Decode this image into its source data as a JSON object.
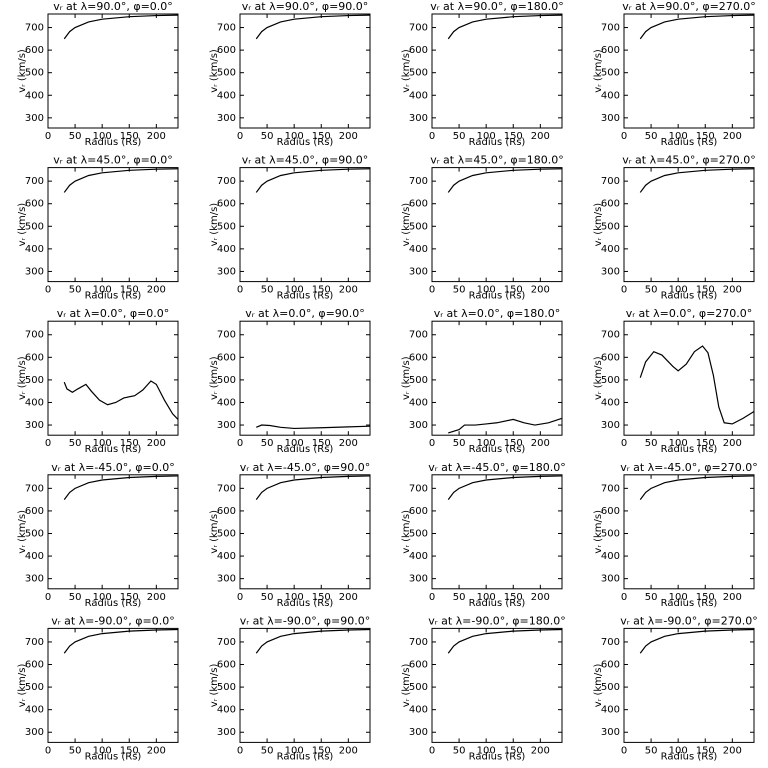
{
  "chart_data": [
    {
      "type": "line",
      "title": "vᵣ at λ=90.0°, φ=0.0°",
      "x_label": "Radius (Rs)",
      "y_label": "vᵣ (km/s)",
      "x": [
        30,
        40,
        50,
        75,
        100,
        150,
        200,
        240
      ],
      "y": [
        650,
        682,
        700,
        725,
        737,
        748,
        753,
        755
      ],
      "color": "#000000",
      "xlim": [
        0,
        240
      ],
      "ylim": [
        255,
        760
      ],
      "xticks": [
        0,
        50,
        100,
        150,
        200
      ],
      "yticks": [
        300,
        400,
        500,
        600,
        700
      ]
    },
    {
      "type": "line",
      "title": "vᵣ at λ=90.0°, φ=90.0°",
      "x_label": "Radius (Rs)",
      "y_label": "vᵣ (km/s)",
      "x": [
        30,
        40,
        50,
        75,
        100,
        150,
        200,
        240
      ],
      "y": [
        650,
        682,
        700,
        725,
        737,
        748,
        753,
        755
      ],
      "color": "#000000",
      "xlim": [
        0,
        240
      ],
      "ylim": [
        255,
        760
      ],
      "xticks": [
        0,
        50,
        100,
        150,
        200
      ],
      "yticks": [
        300,
        400,
        500,
        600,
        700
      ]
    },
    {
      "type": "line",
      "title": "vᵣ at λ=90.0°, φ=180.0°",
      "x_label": "Radius (Rs)",
      "y_label": "vᵣ (km/s)",
      "x": [
        30,
        40,
        50,
        75,
        100,
        150,
        200,
        240
      ],
      "y": [
        650,
        682,
        700,
        725,
        737,
        748,
        753,
        755
      ],
      "color": "#000000",
      "xlim": [
        0,
        240
      ],
      "ylim": [
        255,
        760
      ],
      "xticks": [
        0,
        50,
        100,
        150,
        200
      ],
      "yticks": [
        300,
        400,
        500,
        600,
        700
      ]
    },
    {
      "type": "line",
      "title": "vᵣ at λ=90.0°, φ=270.0°",
      "x_label": "Radius (Rs)",
      "y_label": "vᵣ (km/s)",
      "x": [
        30,
        40,
        50,
        75,
        100,
        150,
        200,
        240
      ],
      "y": [
        650,
        682,
        700,
        725,
        737,
        748,
        753,
        755
      ],
      "color": "#000000",
      "xlim": [
        0,
        240
      ],
      "ylim": [
        255,
        760
      ],
      "xticks": [
        0,
        50,
        100,
        150,
        200
      ],
      "yticks": [
        300,
        400,
        500,
        600,
        700
      ]
    },
    {
      "type": "line",
      "title": "vᵣ at λ=45.0°, φ=0.0°",
      "x_label": "Radius (Rs)",
      "y_label": "vᵣ (km/s)",
      "x": [
        30,
        40,
        50,
        75,
        100,
        150,
        200,
        240
      ],
      "y": [
        650,
        682,
        700,
        725,
        737,
        748,
        753,
        755
      ],
      "color": "#000000",
      "xlim": [
        0,
        240
      ],
      "ylim": [
        255,
        760
      ],
      "xticks": [
        0,
        50,
        100,
        150,
        200
      ],
      "yticks": [
        300,
        400,
        500,
        600,
        700
      ]
    },
    {
      "type": "line",
      "title": "vᵣ at λ=45.0°, φ=90.0°",
      "x_label": "Radius (Rs)",
      "y_label": "vᵣ (km/s)",
      "x": [
        30,
        40,
        50,
        75,
        100,
        150,
        200,
        240
      ],
      "y": [
        650,
        682,
        700,
        725,
        737,
        748,
        753,
        755
      ],
      "color": "#000000",
      "xlim": [
        0,
        240
      ],
      "ylim": [
        255,
        760
      ],
      "xticks": [
        0,
        50,
        100,
        150,
        200
      ],
      "yticks": [
        300,
        400,
        500,
        600,
        700
      ]
    },
    {
      "type": "line",
      "title": "vᵣ at λ=45.0°, φ=180.0°",
      "x_label": "Radius (Rs)",
      "y_label": "vᵣ (km/s)",
      "x": [
        30,
        40,
        50,
        75,
        100,
        150,
        200,
        240
      ],
      "y": [
        650,
        682,
        700,
        725,
        737,
        748,
        753,
        755
      ],
      "color": "#000000",
      "xlim": [
        0,
        240
      ],
      "ylim": [
        255,
        760
      ],
      "xticks": [
        0,
        50,
        100,
        150,
        200
      ],
      "yticks": [
        300,
        400,
        500,
        600,
        700
      ]
    },
    {
      "type": "line",
      "title": "vᵣ at λ=45.0°, φ=270.0°",
      "x_label": "Radius (Rs)",
      "y_label": "vᵣ (km/s)",
      "x": [
        30,
        40,
        50,
        75,
        100,
        150,
        200,
        240
      ],
      "y": [
        650,
        682,
        700,
        725,
        737,
        748,
        753,
        755
      ],
      "color": "#000000",
      "xlim": [
        0,
        240
      ],
      "ylim": [
        255,
        760
      ],
      "xticks": [
        0,
        50,
        100,
        150,
        200
      ],
      "yticks": [
        300,
        400,
        500,
        600,
        700
      ]
    },
    {
      "type": "line",
      "title": "vᵣ at λ=0.0°, φ=0.0°",
      "x_label": "Radius (Rs)",
      "y_label": "vᵣ (km/s)",
      "x": [
        30,
        35,
        45,
        55,
        70,
        80,
        95,
        110,
        125,
        140,
        160,
        175,
        190,
        200,
        215,
        230,
        240
      ],
      "y": [
        490,
        460,
        445,
        460,
        480,
        450,
        410,
        390,
        400,
        420,
        430,
        455,
        495,
        480,
        410,
        350,
        325
      ],
      "color": "#000000",
      "xlim": [
        0,
        240
      ],
      "ylim": [
        255,
        760
      ],
      "xticks": [
        0,
        50,
        100,
        150,
        200
      ],
      "yticks": [
        300,
        400,
        500,
        600,
        700
      ]
    },
    {
      "type": "line",
      "title": "vᵣ at λ=0.0°, φ=90.0°",
      "x_label": "Radius (Rs)",
      "y_label": "vᵣ (km/s)",
      "x": [
        30,
        40,
        55,
        75,
        100,
        150,
        200,
        240
      ],
      "y": [
        290,
        300,
        298,
        290,
        285,
        288,
        292,
        295
      ],
      "color": "#000000",
      "xlim": [
        0,
        240
      ],
      "ylim": [
        255,
        760
      ],
      "xticks": [
        0,
        50,
        100,
        150,
        200
      ],
      "yticks": [
        300,
        400,
        500,
        600,
        700
      ]
    },
    {
      "type": "line",
      "title": "vᵣ at λ=0.0°, φ=180.0°",
      "x_label": "Radius (Rs)",
      "y_label": "vᵣ (km/s)",
      "x": [
        30,
        50,
        60,
        80,
        100,
        120,
        150,
        170,
        190,
        215,
        240
      ],
      "y": [
        265,
        280,
        300,
        300,
        305,
        310,
        325,
        310,
        300,
        310,
        330
      ],
      "color": "#000000",
      "xlim": [
        0,
        240
      ],
      "ylim": [
        255,
        760
      ],
      "xticks": [
        0,
        50,
        100,
        150,
        200
      ],
      "yticks": [
        300,
        400,
        500,
        600,
        700
      ]
    },
    {
      "type": "line",
      "title": "vᵣ at λ=0.0°, φ=270.0°",
      "x_label": "Radius (Rs)",
      "y_label": "vᵣ (km/s)",
      "x": [
        30,
        40,
        55,
        70,
        90,
        100,
        115,
        130,
        145,
        155,
        165,
        175,
        185,
        200,
        220,
        240
      ],
      "y": [
        510,
        580,
        625,
        610,
        560,
        540,
        570,
        625,
        650,
        620,
        520,
        380,
        310,
        305,
        330,
        360
      ],
      "color": "#000000",
      "xlim": [
        0,
        240
      ],
      "ylim": [
        255,
        760
      ],
      "xticks": [
        0,
        50,
        100,
        150,
        200
      ],
      "yticks": [
        300,
        400,
        500,
        600,
        700
      ]
    },
    {
      "type": "line",
      "title": "vᵣ at λ=-45.0°, φ=0.0°",
      "x_label": "Radius (Rs)",
      "y_label": "vᵣ (km/s)",
      "x": [
        30,
        40,
        50,
        75,
        100,
        150,
        200,
        240
      ],
      "y": [
        650,
        682,
        700,
        725,
        737,
        748,
        753,
        755
      ],
      "color": "#000000",
      "xlim": [
        0,
        240
      ],
      "ylim": [
        255,
        760
      ],
      "xticks": [
        0,
        50,
        100,
        150,
        200
      ],
      "yticks": [
        300,
        400,
        500,
        600,
        700
      ]
    },
    {
      "type": "line",
      "title": "vᵣ at λ=-45.0°, φ=90.0°",
      "x_label": "Radius (Rs)",
      "y_label": "vᵣ (km/s)",
      "x": [
        30,
        40,
        50,
        75,
        100,
        150,
        200,
        240
      ],
      "y": [
        650,
        682,
        700,
        725,
        737,
        748,
        753,
        755
      ],
      "color": "#000000",
      "xlim": [
        0,
        240
      ],
      "ylim": [
        255,
        760
      ],
      "xticks": [
        0,
        50,
        100,
        150,
        200
      ],
      "yticks": [
        300,
        400,
        500,
        600,
        700
      ]
    },
    {
      "type": "line",
      "title": "vᵣ at λ=-45.0°, φ=180.0°",
      "x_label": "Radius (Rs)",
      "y_label": "vᵣ (km/s)",
      "x": [
        30,
        40,
        50,
        75,
        100,
        150,
        200,
        240
      ],
      "y": [
        650,
        682,
        700,
        725,
        737,
        748,
        753,
        755
      ],
      "color": "#000000",
      "xlim": [
        0,
        240
      ],
      "ylim": [
        255,
        760
      ],
      "xticks": [
        0,
        50,
        100,
        150,
        200
      ],
      "yticks": [
        300,
        400,
        500,
        600,
        700
      ]
    },
    {
      "type": "line",
      "title": "vᵣ at λ=-45.0°, φ=270.0°",
      "x_label": "Radius (Rs)",
      "y_label": "vᵣ (km/s)",
      "x": [
        30,
        40,
        50,
        75,
        100,
        150,
        200,
        240
      ],
      "y": [
        650,
        682,
        700,
        725,
        737,
        748,
        753,
        755
      ],
      "color": "#000000",
      "xlim": [
        0,
        240
      ],
      "ylim": [
        255,
        760
      ],
      "xticks": [
        0,
        50,
        100,
        150,
        200
      ],
      "yticks": [
        300,
        400,
        500,
        600,
        700
      ]
    },
    {
      "type": "line",
      "title": "vᵣ at λ=-90.0°, φ=0.0°",
      "x_label": "Radius (Rs)",
      "y_label": "vᵣ (km/s)",
      "x": [
        30,
        40,
        50,
        75,
        100,
        150,
        200,
        240
      ],
      "y": [
        650,
        682,
        700,
        725,
        737,
        748,
        753,
        755
      ],
      "color": "#000000",
      "xlim": [
        0,
        240
      ],
      "ylim": [
        255,
        760
      ],
      "xticks": [
        0,
        50,
        100,
        150,
        200
      ],
      "yticks": [
        300,
        400,
        500,
        600,
        700
      ]
    },
    {
      "type": "line",
      "title": "vᵣ at λ=-90.0°, φ=90.0°",
      "x_label": "Radius (Rs)",
      "y_label": "vᵣ (km/s)",
      "x": [
        30,
        40,
        50,
        75,
        100,
        150,
        200,
        240
      ],
      "y": [
        650,
        682,
        700,
        725,
        737,
        748,
        753,
        755
      ],
      "color": "#000000",
      "xlim": [
        0,
        240
      ],
      "ylim": [
        255,
        760
      ],
      "xticks": [
        0,
        50,
        100,
        150,
        200
      ],
      "yticks": [
        300,
        400,
        500,
        600,
        700
      ]
    },
    {
      "type": "line",
      "title": "vᵣ at λ=-90.0°, φ=180.0°",
      "x_label": "Radius (Rs)",
      "y_label": "vᵣ (km/s)",
      "x": [
        30,
        40,
        50,
        75,
        100,
        150,
        200,
        240
      ],
      "y": [
        650,
        682,
        700,
        725,
        737,
        748,
        753,
        755
      ],
      "color": "#000000",
      "xlim": [
        0,
        240
      ],
      "ylim": [
        255,
        760
      ],
      "xticks": [
        0,
        50,
        100,
        150,
        200
      ],
      "yticks": [
        300,
        400,
        500,
        600,
        700
      ]
    },
    {
      "type": "line",
      "title": "vᵣ at λ=-90.0°, φ=270.0°",
      "x_label": "Radius (Rs)",
      "y_label": "vᵣ (km/s)",
      "x": [
        30,
        40,
        50,
        75,
        100,
        150,
        200,
        240
      ],
      "y": [
        650,
        682,
        700,
        725,
        737,
        748,
        753,
        755
      ],
      "color": "#000000",
      "xlim": [
        0,
        240
      ],
      "ylim": [
        255,
        760
      ],
      "xticks": [
        0,
        50,
        100,
        150,
        200
      ],
      "yticks": [
        300,
        400,
        500,
        600,
        700
      ]
    }
  ]
}
